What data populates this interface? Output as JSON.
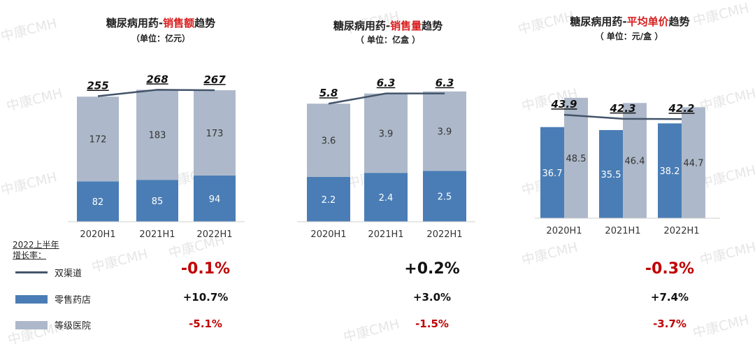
{
  "watermark": "中康CMH",
  "colors": {
    "retail": "#4a7db5",
    "hospital": "#adb9ca",
    "line": "#44546a",
    "highlight": "#d81e1e",
    "growth_negative": "#c00000"
  },
  "panels": [
    {
      "title_prefix": "糖尿病用药-",
      "title_highlight": "销售额",
      "title_suffix": "趋势",
      "unit": "（单位：亿元）"
    },
    {
      "title_prefix": "糖尿病用药-",
      "title_highlight": "销售量",
      "title_suffix": "趋势",
      "unit": "（ 单位：亿盒 ）"
    },
    {
      "title_prefix": "糖尿病用药-",
      "title_highlight": "平均单价",
      "title_suffix": "趋势",
      "unit": "（ 单位：元/盒 ）"
    }
  ],
  "legend": {
    "heading_line1": "2022上半年",
    "heading_line2": "增长率：",
    "items": [
      {
        "label": "双渠道",
        "kind": "line"
      },
      {
        "label": "零售药店",
        "kind": "retail"
      },
      {
        "label": "等级医院",
        "kind": "hospital"
      }
    ]
  },
  "growth": [
    [
      "-0.1%",
      "+10.7%",
      "-5.1%"
    ],
    [
      "+0.2%",
      "+3.0%",
      "-1.5%"
    ],
    [
      "-0.3%",
      "+7.4%",
      "-3.7%"
    ]
  ],
  "chart_data": [
    {
      "type": "bar",
      "stacked": true,
      "title": "糖尿病用药-销售额趋势",
      "categories": [
        "2020H1",
        "2021H1",
        "2022H1"
      ],
      "series": [
        {
          "name": "零售药店",
          "values": [
            82,
            85,
            94
          ]
        },
        {
          "name": "等级医院",
          "values": [
            172,
            183,
            173
          ]
        },
        {
          "name": "双渠道",
          "type": "line",
          "values": [
            255,
            268,
            267
          ]
        }
      ],
      "total_labels": [
        "255",
        "268",
        "267"
      ]
    },
    {
      "type": "bar",
      "stacked": true,
      "title": "糖尿病用药-销售量趋势",
      "categories": [
        "2020H1",
        "2021H1",
        "2022H1"
      ],
      "series": [
        {
          "name": "零售药店",
          "values": [
            2.2,
            2.4,
            2.5
          ]
        },
        {
          "name": "等级医院",
          "values": [
            3.6,
            3.9,
            3.9
          ]
        },
        {
          "name": "双渠道",
          "type": "line",
          "values": [
            5.8,
            6.3,
            6.3
          ]
        }
      ],
      "total_labels": [
        "5.8",
        "6.3",
        "6.3"
      ]
    },
    {
      "type": "bar",
      "stacked": false,
      "title": "糖尿病用药-平均单价趋势",
      "categories": [
        "2020H1",
        "2021H1",
        "2022H1"
      ],
      "series": [
        {
          "name": "零售药店",
          "values": [
            36.7,
            35.5,
            38.2
          ]
        },
        {
          "name": "等级医院",
          "values": [
            48.5,
            46.4,
            44.7
          ]
        },
        {
          "name": "双渠道",
          "type": "line",
          "values": [
            43.9,
            42.3,
            42.2
          ]
        }
      ],
      "total_labels": [
        "43.9",
        "42.3",
        "42.2"
      ]
    }
  ]
}
